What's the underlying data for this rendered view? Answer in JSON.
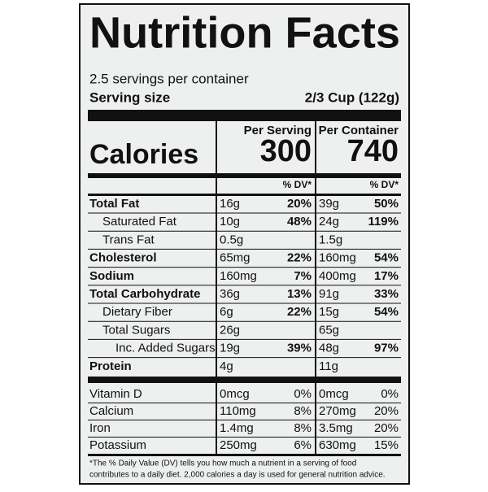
{
  "header": {
    "title": "Nutrition Facts",
    "servings": "2.5 servings per container",
    "serving_size_label": "Serving size",
    "serving_size": "2/3 Cup (122g)"
  },
  "columns": [
    {
      "heading": "Per Serving",
      "dv_heading": "% DV*"
    },
    {
      "heading": "Per Container",
      "dv_heading": "% DV*"
    }
  ],
  "calories": {
    "label": "Calories",
    "values": [
      300,
      740
    ]
  },
  "nutrients": [
    {
      "name": "Total Fat",
      "serving": "16g",
      "serving_dv": "20%",
      "container": "39g",
      "container_dv": "50%",
      "children": [
        {
          "name": "Saturated Fat",
          "serving": "10g",
          "serving_dv": "48%",
          "container": "24g",
          "container_dv": "119%"
        },
        {
          "name": "Trans Fat",
          "serving": "0.5g",
          "container": "1.5g"
        }
      ]
    },
    {
      "name": "Cholesterol",
      "serving": "65mg",
      "serving_dv": "22%",
      "container": "160mg",
      "container_dv": "54%"
    },
    {
      "name": "Sodium",
      "serving": "160mg",
      "serving_dv": "7%",
      "container": "400mg",
      "container_dv": "17%"
    },
    {
      "name": "Total Carbohydrate",
      "serving": "36g",
      "serving_dv": "13%",
      "container": "91g",
      "container_dv": "33%",
      "children": [
        {
          "name": "Dietary Fiber",
          "serving": "6g",
          "serving_dv": "22%",
          "container": "15g",
          "container_dv": "54%"
        },
        {
          "name": "Total Sugars",
          "serving": "26g",
          "container": "65g",
          "children": [
            {
              "name": "Inc. Added Sugars",
              "serving": "19g",
              "serving_dv": "39%",
              "container": "48g",
              "container_dv": "97%"
            }
          ]
        }
      ]
    },
    {
      "name": "Protein",
      "serving": "4g",
      "container": "11g"
    }
  ],
  "vitamins_minerals": [
    {
      "name": "Vitamin D",
      "serving": "0mcg",
      "serving_dv": "0%",
      "container": "0mcg",
      "container_dv": "0%"
    },
    {
      "name": "Calcium",
      "serving": "110mg",
      "serving_dv": "8%",
      "container": "270mg",
      "container_dv": "20%"
    },
    {
      "name": "Iron",
      "serving": "1.4mg",
      "serving_dv": "8%",
      "container": "3.5mg",
      "container_dv": "20%"
    },
    {
      "name": "Potassium",
      "serving": "250mg",
      "serving_dv": "6%",
      "container": "630mg",
      "container_dv": "15%"
    }
  ],
  "footnote": [
    "*The % Daily Value (DV) tells you how much a nutrient in a serving of food",
    "contributes to a daily diet. 2,000 calories a day is used for general nutrition advice."
  ]
}
